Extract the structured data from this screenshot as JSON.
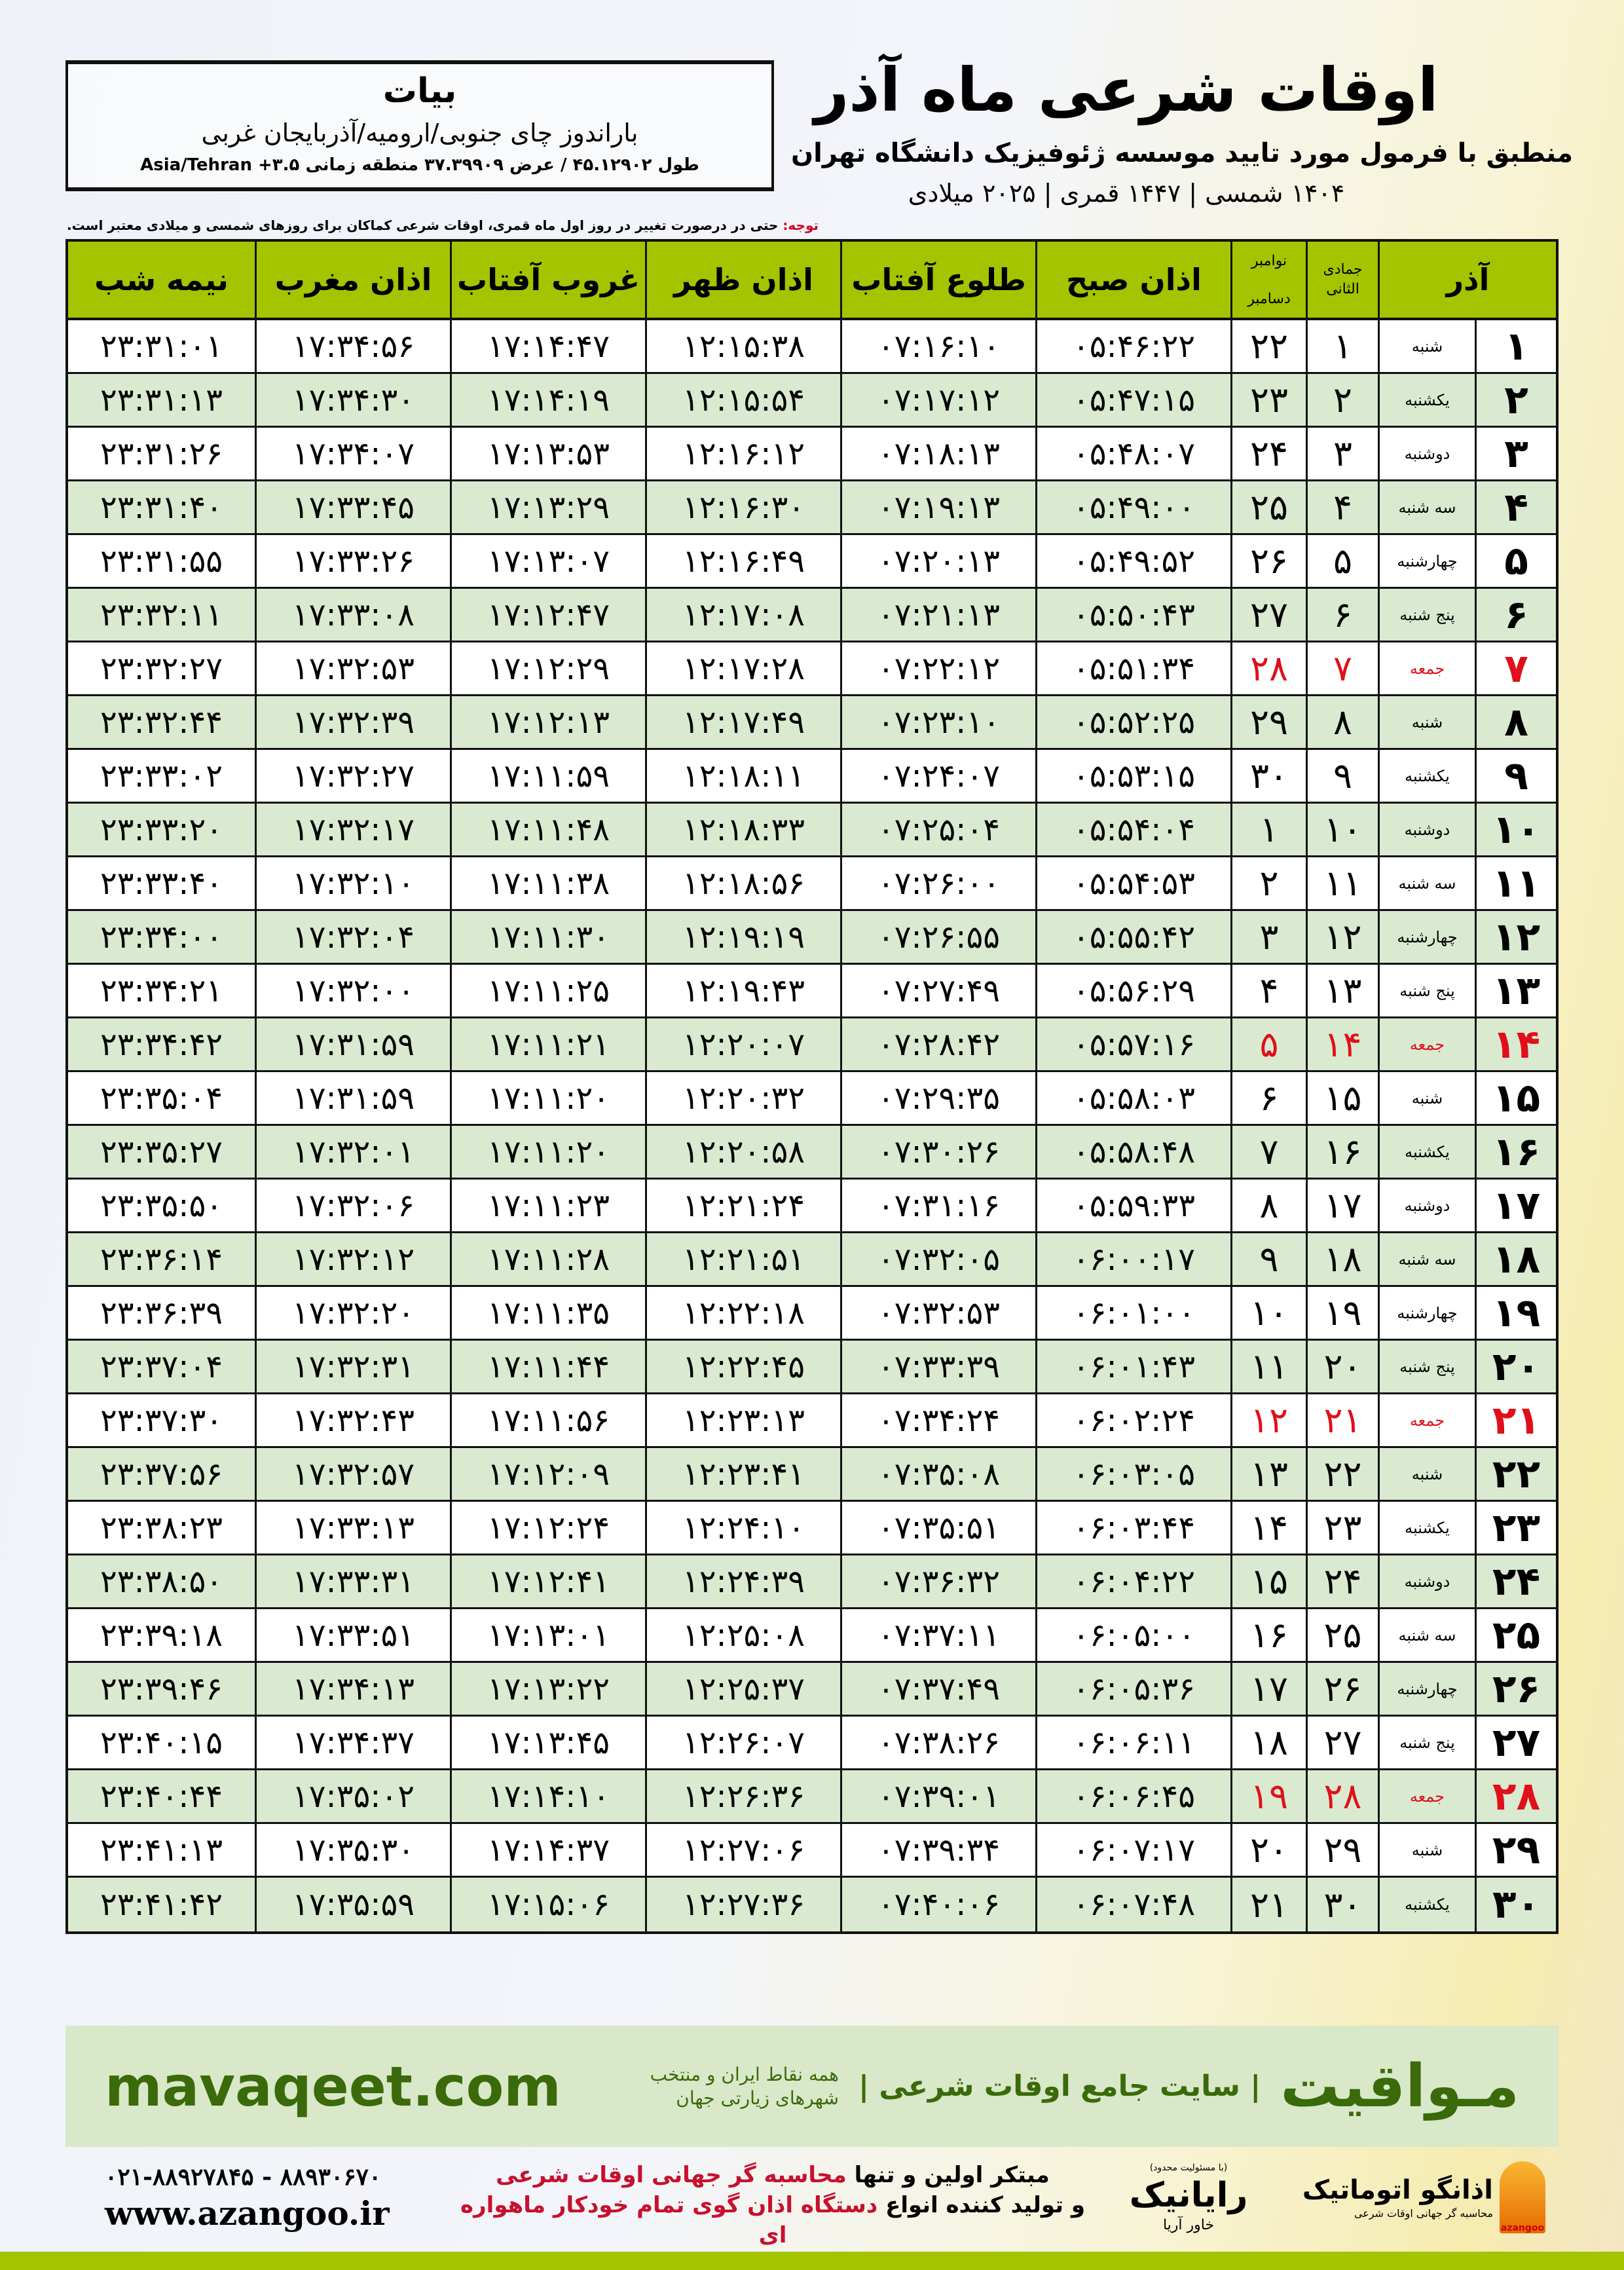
{
  "location": {
    "city": "بیات",
    "region": "باراندوز چای جنوبی/ارومیه/آذربایجان غربی",
    "coords": "طول ۴۵.۱۲۹۰۲ / عرض ۳۷.۳۹۹۰۹ منطقه زمانی ۳.۵+ Asia/Tehran"
  },
  "header": {
    "title": "اوقات شرعی ماه آذر",
    "subtitle": "منطبق با فرمول مورد تایید موسسه ژئوفیزیک دانشگاه تهران",
    "years": "۱۴۰۴ شمسی | ۱۴۴۷ قمری | ۲۰۲۵ میلادی"
  },
  "note": {
    "label": "توجه:",
    "text": " حتی در درصورت تغییر در روز اول ماه قمری، اوقات شرعی کماکان برای روزهای شمسی و میلادی معتبر است."
  },
  "table": {
    "headers": {
      "month": "آذر",
      "qamari": "جمادی الثانی",
      "greg_top": "نوامبر",
      "greg_bottom": "دسامبر",
      "fajr": "اذان صبح",
      "sunrise": "طلوع آفتاب",
      "dhuhr": "اذان ظهر",
      "sunset": "غروب آفتاب",
      "maghrib": "اذان مغرب",
      "midnight": "نیمه شب"
    },
    "holiday_color": "#e0101a",
    "rows": [
      [
        "۱",
        "شنبه",
        "۱",
        "۲۲",
        "۰۵:۴۶:۲۲",
        "۰۷:۱۶:۱۰",
        "۱۲:۱۵:۳۸",
        "۱۷:۱۴:۴۷",
        "۱۷:۳۴:۵۶",
        "۲۳:۳۱:۰۱",
        false
      ],
      [
        "۲",
        "یکشنبه",
        "۲",
        "۲۳",
        "۰۵:۴۷:۱۵",
        "۰۷:۱۷:۱۲",
        "۱۲:۱۵:۵۴",
        "۱۷:۱۴:۱۹",
        "۱۷:۳۴:۳۰",
        "۲۳:۳۱:۱۳",
        false
      ],
      [
        "۳",
        "دوشنبه",
        "۳",
        "۲۴",
        "۰۵:۴۸:۰۷",
        "۰۷:۱۸:۱۳",
        "۱۲:۱۶:۱۲",
        "۱۷:۱۳:۵۳",
        "۱۷:۳۴:۰۷",
        "۲۳:۳۱:۲۶",
        false
      ],
      [
        "۴",
        "سه شنبه",
        "۴",
        "۲۵",
        "۰۵:۴۹:۰۰",
        "۰۷:۱۹:۱۳",
        "۱۲:۱۶:۳۰",
        "۱۷:۱۳:۲۹",
        "۱۷:۳۳:۴۵",
        "۲۳:۳۱:۴۰",
        false
      ],
      [
        "۵",
        "چهارشنبه",
        "۵",
        "۲۶",
        "۰۵:۴۹:۵۲",
        "۰۷:۲۰:۱۳",
        "۱۲:۱۶:۴۹",
        "۱۷:۱۳:۰۷",
        "۱۷:۳۳:۲۶",
        "۲۳:۳۱:۵۵",
        false
      ],
      [
        "۶",
        "پنج شنبه",
        "۶",
        "۲۷",
        "۰۵:۵۰:۴۳",
        "۰۷:۲۱:۱۳",
        "۱۲:۱۷:۰۸",
        "۱۷:۱۲:۴۷",
        "۱۷:۳۳:۰۸",
        "۲۳:۳۲:۱۱",
        false
      ],
      [
        "۷",
        "جمعه",
        "۷",
        "۲۸",
        "۰۵:۵۱:۳۴",
        "۰۷:۲۲:۱۲",
        "۱۲:۱۷:۲۸",
        "۱۷:۱۲:۲۹",
        "۱۷:۳۲:۵۳",
        "۲۳:۳۲:۲۷",
        true
      ],
      [
        "۸",
        "شنبه",
        "۸",
        "۲۹",
        "۰۵:۵۲:۲۵",
        "۰۷:۲۳:۱۰",
        "۱۲:۱۷:۴۹",
        "۱۷:۱۲:۱۳",
        "۱۷:۳۲:۳۹",
        "۲۳:۳۲:۴۴",
        false
      ],
      [
        "۹",
        "یکشنبه",
        "۹",
        "۳۰",
        "۰۵:۵۳:۱۵",
        "۰۷:۲۴:۰۷",
        "۱۲:۱۸:۱۱",
        "۱۷:۱۱:۵۹",
        "۱۷:۳۲:۲۷",
        "۲۳:۳۳:۰۲",
        false
      ],
      [
        "۱۰",
        "دوشنبه",
        "۱۰",
        "۱",
        "۰۵:۵۴:۰۴",
        "۰۷:۲۵:۰۴",
        "۱۲:۱۸:۳۳",
        "۱۷:۱۱:۴۸",
        "۱۷:۳۲:۱۷",
        "۲۳:۳۳:۲۰",
        false
      ],
      [
        "۱۱",
        "سه شنبه",
        "۱۱",
        "۲",
        "۰۵:۵۴:۵۳",
        "۰۷:۲۶:۰۰",
        "۱۲:۱۸:۵۶",
        "۱۷:۱۱:۳۸",
        "۱۷:۳۲:۱۰",
        "۲۳:۳۳:۴۰",
        false
      ],
      [
        "۱۲",
        "چهارشنبه",
        "۱۲",
        "۳",
        "۰۵:۵۵:۴۲",
        "۰۷:۲۶:۵۵",
        "۱۲:۱۹:۱۹",
        "۱۷:۱۱:۳۰",
        "۱۷:۳۲:۰۴",
        "۲۳:۳۴:۰۰",
        false
      ],
      [
        "۱۳",
        "پنج شنبه",
        "۱۳",
        "۴",
        "۰۵:۵۶:۲۹",
        "۰۷:۲۷:۴۹",
        "۱۲:۱۹:۴۳",
        "۱۷:۱۱:۲۵",
        "۱۷:۳۲:۰۰",
        "۲۳:۳۴:۲۱",
        false
      ],
      [
        "۱۴",
        "جمعه",
        "۱۴",
        "۵",
        "۰۵:۵۷:۱۶",
        "۰۷:۲۸:۴۲",
        "۱۲:۲۰:۰۷",
        "۱۷:۱۱:۲۱",
        "۱۷:۳۱:۵۹",
        "۲۳:۳۴:۴۲",
        true
      ],
      [
        "۱۵",
        "شنبه",
        "۱۵",
        "۶",
        "۰۵:۵۸:۰۳",
        "۰۷:۲۹:۳۵",
        "۱۲:۲۰:۳۲",
        "۱۷:۱۱:۲۰",
        "۱۷:۳۱:۵۹",
        "۲۳:۳۵:۰۴",
        false
      ],
      [
        "۱۶",
        "یکشنبه",
        "۱۶",
        "۷",
        "۰۵:۵۸:۴۸",
        "۰۷:۳۰:۲۶",
        "۱۲:۲۰:۵۸",
        "۱۷:۱۱:۲۰",
        "۱۷:۳۲:۰۱",
        "۲۳:۳۵:۲۷",
        false
      ],
      [
        "۱۷",
        "دوشنبه",
        "۱۷",
        "۸",
        "۰۵:۵۹:۳۳",
        "۰۷:۳۱:۱۶",
        "۱۲:۲۱:۲۴",
        "۱۷:۱۱:۲۳",
        "۱۷:۳۲:۰۶",
        "۲۳:۳۵:۵۰",
        false
      ],
      [
        "۱۸",
        "سه شنبه",
        "۱۸",
        "۹",
        "۰۶:۰۰:۱۷",
        "۰۷:۳۲:۰۵",
        "۱۲:۲۱:۵۱",
        "۱۷:۱۱:۲۸",
        "۱۷:۳۲:۱۲",
        "۲۳:۳۶:۱۴",
        false
      ],
      [
        "۱۹",
        "چهارشنبه",
        "۱۹",
        "۱۰",
        "۰۶:۰۱:۰۰",
        "۰۷:۳۲:۵۳",
        "۱۲:۲۲:۱۸",
        "۱۷:۱۱:۳۵",
        "۱۷:۳۲:۲۰",
        "۲۳:۳۶:۳۹",
        false
      ],
      [
        "۲۰",
        "پنج شنبه",
        "۲۰",
        "۱۱",
        "۰۶:۰۱:۴۳",
        "۰۷:۳۳:۳۹",
        "۱۲:۲۲:۴۵",
        "۱۷:۱۱:۴۴",
        "۱۷:۳۲:۳۱",
        "۲۳:۳۷:۰۴",
        false
      ],
      [
        "۲۱",
        "جمعه",
        "۲۱",
        "۱۲",
        "۰۶:۰۲:۲۴",
        "۰۷:۳۴:۲۴",
        "۱۲:۲۳:۱۳",
        "۱۷:۱۱:۵۶",
        "۱۷:۳۲:۴۳",
        "۲۳:۳۷:۳۰",
        true
      ],
      [
        "۲۲",
        "شنبه",
        "۲۲",
        "۱۳",
        "۰۶:۰۳:۰۵",
        "۰۷:۳۵:۰۸",
        "۱۲:۲۳:۴۱",
        "۱۷:۱۲:۰۹",
        "۱۷:۳۲:۵۷",
        "۲۳:۳۷:۵۶",
        false
      ],
      [
        "۲۳",
        "یکشنبه",
        "۲۳",
        "۱۴",
        "۰۶:۰۳:۴۴",
        "۰۷:۳۵:۵۱",
        "۱۲:۲۴:۱۰",
        "۱۷:۱۲:۲۴",
        "۱۷:۳۳:۱۳",
        "۲۳:۳۸:۲۳",
        false
      ],
      [
        "۲۴",
        "دوشنبه",
        "۲۴",
        "۱۵",
        "۰۶:۰۴:۲۲",
        "۰۷:۳۶:۳۲",
        "۱۲:۲۴:۳۹",
        "۱۷:۱۲:۴۱",
        "۱۷:۳۳:۳۱",
        "۲۳:۳۸:۵۰",
        false
      ],
      [
        "۲۵",
        "سه شنبه",
        "۲۵",
        "۱۶",
        "۰۶:۰۵:۰۰",
        "۰۷:۳۷:۱۱",
        "۱۲:۲۵:۰۸",
        "۱۷:۱۳:۰۱",
        "۱۷:۳۳:۵۱",
        "۲۳:۳۹:۱۸",
        false
      ],
      [
        "۲۶",
        "چهارشنبه",
        "۲۶",
        "۱۷",
        "۰۶:۰۵:۳۶",
        "۰۷:۳۷:۴۹",
        "۱۲:۲۵:۳۷",
        "۱۷:۱۳:۲۲",
        "۱۷:۳۴:۱۳",
        "۲۳:۳۹:۴۶",
        false
      ],
      [
        "۲۷",
        "پنج شنبه",
        "۲۷",
        "۱۸",
        "۰۶:۰۶:۱۱",
        "۰۷:۳۸:۲۶",
        "۱۲:۲۶:۰۷",
        "۱۷:۱۳:۴۵",
        "۱۷:۳۴:۳۷",
        "۲۳:۴۰:۱۵",
        false
      ],
      [
        "۲۸",
        "جمعه",
        "۲۸",
        "۱۹",
        "۰۶:۰۶:۴۵",
        "۰۷:۳۹:۰۱",
        "۱۲:۲۶:۳۶",
        "۱۷:۱۴:۱۰",
        "۱۷:۳۵:۰۲",
        "۲۳:۴۰:۴۴",
        true
      ],
      [
        "۲۹",
        "شنبه",
        "۲۹",
        "۲۰",
        "۰۶:۰۷:۱۷",
        "۰۷:۳۹:۳۴",
        "۱۲:۲۷:۰۶",
        "۱۷:۱۴:۳۷",
        "۱۷:۳۵:۳۰",
        "۲۳:۴۱:۱۳",
        false
      ],
      [
        "۳۰",
        "یکشنبه",
        "۳۰",
        "۲۱",
        "۰۶:۰۷:۴۸",
        "۰۷:۴۰:۰۶",
        "۱۲:۲۷:۳۶",
        "۱۷:۱۵:۰۶",
        "۱۷:۳۵:۵۹",
        "۲۳:۴۱:۴۲",
        false
      ]
    ]
  },
  "footer": {
    "brand": "مـواقیت",
    "tagline": "| سایت جامع اوقات شرعی |",
    "tagline2": "همه نقاط ایران و منتخب شهرهای زیارتی جهان",
    "site": "mavaqeet.com",
    "phone": "۰۲۱-۸۸۹۲۷۸۴۵ - ۸۸۹۳۰۶۷۰",
    "web": "www.azangoo.ir",
    "promo_1a": "مبتکر اولین و تنها ",
    "promo_1b": "محاسبه گر جهانی اوقات شرعی",
    "promo_2a": "و تولید کننده انواع ",
    "promo_2b": "دستگاه اذان گوی تمام خودکار ماهواره ای",
    "rayanik_small": "(با مسئولیت محدود)",
    "rayanik": "رایانیک",
    "rayanik_sub": "خاور آریا",
    "azangoo": "اذانگو اتوماتیک",
    "azangoo_sub": "محاسبه گر جهانی اوقات شرعی",
    "azangoo_logo": "azangoo",
    "accent": "#a4c400",
    "brand_color": "#3a6a0a",
    "highlight": "#c8102e"
  }
}
